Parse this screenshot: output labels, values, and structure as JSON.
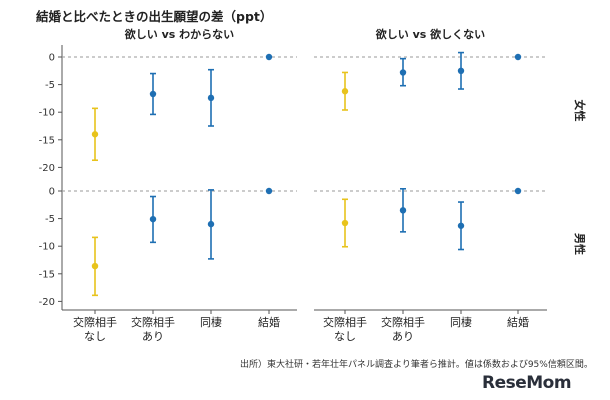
{
  "title": "結婚と比べたときの出生願望の差（ppt）",
  "source_note": "出所）東大社研・若年壮年パネル調査より筆者ら推計。値は係数および95%信頼区間。",
  "logo_text": "ReseMom",
  "colors": {
    "yellow": "#E8C31C",
    "blue": "#1E6FB3",
    "grid_zero": "#9a9a9a",
    "axis": "#555555"
  },
  "chart_data": {
    "type": "scatter",
    "panel_columns": [
      "欲しい vs わからない",
      "欲しい vs 欲しくない"
    ],
    "panel_rows": [
      "女性",
      "男性"
    ],
    "categories": [
      [
        "交際相手",
        "なし"
      ],
      [
        "交際相手",
        "あり"
      ],
      [
        "同棲"
      ],
      [
        "結婚"
      ]
    ],
    "yticks": [
      0,
      -5,
      -10,
      -15,
      -20
    ],
    "ylim": [
      -21,
      1.5
    ],
    "panels": [
      {
        "column": 0,
        "row": 0,
        "points": [
          {
            "estimate": -14.0,
            "lower": -18.7,
            "upper": -9.3,
            "color": "yellow"
          },
          {
            "estimate": -6.7,
            "lower": -10.4,
            "upper": -3.0,
            "color": "blue"
          },
          {
            "estimate": -7.4,
            "lower": -12.5,
            "upper": -2.3,
            "color": "blue"
          },
          {
            "estimate": 0,
            "lower": 0,
            "upper": 0,
            "color": "blue"
          }
        ]
      },
      {
        "column": 1,
        "row": 0,
        "points": [
          {
            "estimate": -6.2,
            "lower": -9.6,
            "upper": -2.8,
            "color": "yellow"
          },
          {
            "estimate": -2.8,
            "lower": -5.2,
            "upper": -0.3,
            "color": "blue"
          },
          {
            "estimate": -2.5,
            "lower": -5.8,
            "upper": 0.8,
            "color": "blue"
          },
          {
            "estimate": 0,
            "lower": 0,
            "upper": 0,
            "color": "blue"
          }
        ]
      },
      {
        "column": 0,
        "row": 1,
        "points": [
          {
            "estimate": -13.6,
            "lower": -18.9,
            "upper": -8.4,
            "color": "yellow"
          },
          {
            "estimate": -5.1,
            "lower": -9.3,
            "upper": -1.0,
            "color": "blue"
          },
          {
            "estimate": -6.0,
            "lower": -12.3,
            "upper": 0.2,
            "color": "blue"
          },
          {
            "estimate": 0,
            "lower": 0,
            "upper": 0,
            "color": "blue"
          }
        ]
      },
      {
        "column": 1,
        "row": 1,
        "points": [
          {
            "estimate": -5.8,
            "lower": -10.1,
            "upper": -1.5,
            "color": "yellow"
          },
          {
            "estimate": -3.5,
            "lower": -7.4,
            "upper": 0.4,
            "color": "blue"
          },
          {
            "estimate": -6.3,
            "lower": -10.6,
            "upper": -2.0,
            "color": "blue"
          },
          {
            "estimate": 0,
            "lower": 0,
            "upper": 0,
            "color": "blue"
          }
        ]
      }
    ]
  }
}
